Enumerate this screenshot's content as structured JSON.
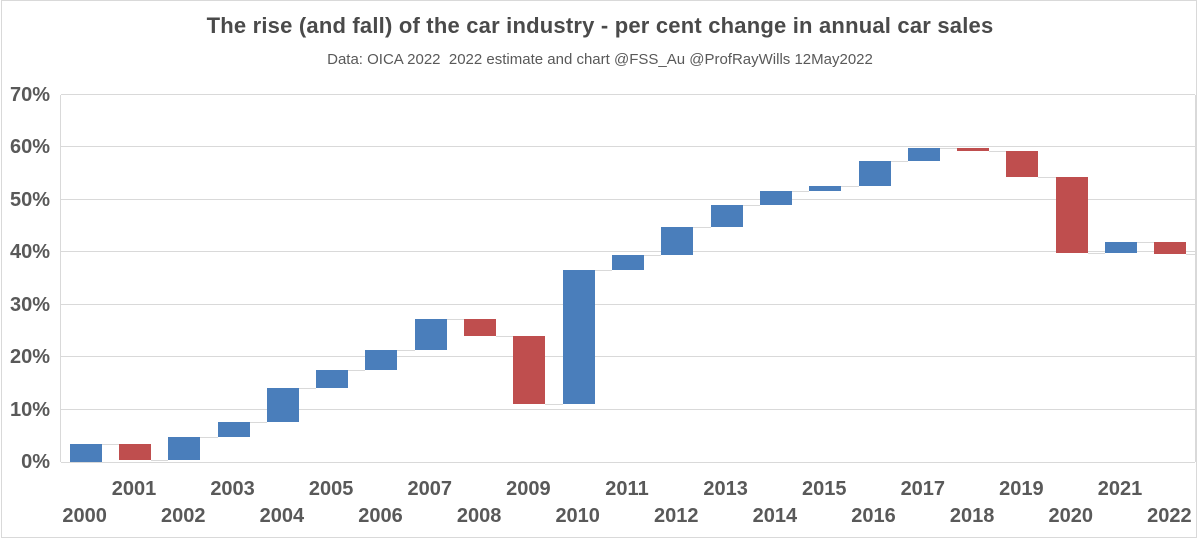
{
  "header": {
    "title": "The rise (and fall) of the car industry - per cent change in annual car sales",
    "subtitle": "Data: OICA 2022  2022 estimate and chart @FSS_Au @ProfRayWills 12May2022"
  },
  "colors": {
    "increase": "#4a7ebb",
    "decrease": "#bf4e4e",
    "gridline": "#d9d9d9",
    "connector": "#d9d9d9",
    "tick_text": "#595959",
    "title_text": "#4a4a4a",
    "background": "#ffffff"
  },
  "chart_data": {
    "type": "bar",
    "subtype": "waterfall",
    "title": "The rise (and fall) of the car industry - per cent change in annual car sales",
    "subtitle": "Data: OICA 2022  2022 estimate and chart @FSS_Au @ProfRayWills 12May2022",
    "xlabel": "",
    "ylabel": "",
    "ylim": [
      0,
      70
    ],
    "grid": true,
    "legend": "none",
    "y_ticks": [
      {
        "label": "70%",
        "value": 70
      },
      {
        "label": "60%",
        "value": 60
      },
      {
        "label": "50%",
        "value": 50
      },
      {
        "label": "40%",
        "value": 40
      },
      {
        "label": "30%",
        "value": 30
      },
      {
        "label": "20%",
        "value": 20
      },
      {
        "label": "10%",
        "value": 10
      },
      {
        "label": "0%",
        "value": 0
      }
    ],
    "x_tick_rows": {
      "upper": "odd years",
      "lower": "even years"
    },
    "bars": [
      {
        "year": "2000",
        "start": 0.0,
        "end": 3.5,
        "change": 3.5,
        "direction": "increase"
      },
      {
        "year": "2001",
        "start": 3.5,
        "end": 0.4,
        "change": -3.1,
        "direction": "decrease"
      },
      {
        "year": "2002",
        "start": 0.4,
        "end": 4.8,
        "change": 4.4,
        "direction": "increase"
      },
      {
        "year": "2003",
        "start": 4.8,
        "end": 7.6,
        "change": 2.8,
        "direction": "increase"
      },
      {
        "year": "2004",
        "start": 7.6,
        "end": 14.1,
        "change": 6.5,
        "direction": "increase"
      },
      {
        "year": "2005",
        "start": 14.1,
        "end": 17.6,
        "change": 3.5,
        "direction": "increase"
      },
      {
        "year": "2006",
        "start": 17.6,
        "end": 21.4,
        "change": 3.8,
        "direction": "increase"
      },
      {
        "year": "2007",
        "start": 21.4,
        "end": 27.2,
        "change": 5.8,
        "direction": "increase"
      },
      {
        "year": "2008",
        "start": 27.2,
        "end": 24.0,
        "change": -3.2,
        "direction": "decrease"
      },
      {
        "year": "2009",
        "start": 24.0,
        "end": 11.1,
        "change": -12.9,
        "direction": "decrease"
      },
      {
        "year": "2010",
        "start": 11.1,
        "end": 36.7,
        "change": 25.6,
        "direction": "increase"
      },
      {
        "year": "2011",
        "start": 36.7,
        "end": 39.4,
        "change": 2.7,
        "direction": "increase"
      },
      {
        "year": "2012",
        "start": 39.4,
        "end": 44.8,
        "change": 5.4,
        "direction": "increase"
      },
      {
        "year": "2013",
        "start": 44.8,
        "end": 49.0,
        "change": 4.2,
        "direction": "increase"
      },
      {
        "year": "2014",
        "start": 49.0,
        "end": 51.6,
        "change": 2.6,
        "direction": "increase"
      },
      {
        "year": "2015",
        "start": 51.6,
        "end": 52.7,
        "change": 1.1,
        "direction": "increase"
      },
      {
        "year": "2016",
        "start": 52.7,
        "end": 57.4,
        "change": 4.7,
        "direction": "increase"
      },
      {
        "year": "2017",
        "start": 57.4,
        "end": 59.9,
        "change": 2.5,
        "direction": "increase"
      },
      {
        "year": "2018",
        "start": 59.9,
        "end": 59.3,
        "change": -0.6,
        "direction": "decrease"
      },
      {
        "year": "2019",
        "start": 59.3,
        "end": 54.3,
        "change": -5.0,
        "direction": "decrease"
      },
      {
        "year": "2020",
        "start": 54.3,
        "end": 39.8,
        "change": -14.5,
        "direction": "decrease"
      },
      {
        "year": "2021",
        "start": 39.8,
        "end": 41.9,
        "change": 2.1,
        "direction": "increase"
      },
      {
        "year": "2022",
        "start": 41.9,
        "end": 39.6,
        "change": -2.3,
        "direction": "decrease"
      }
    ]
  }
}
